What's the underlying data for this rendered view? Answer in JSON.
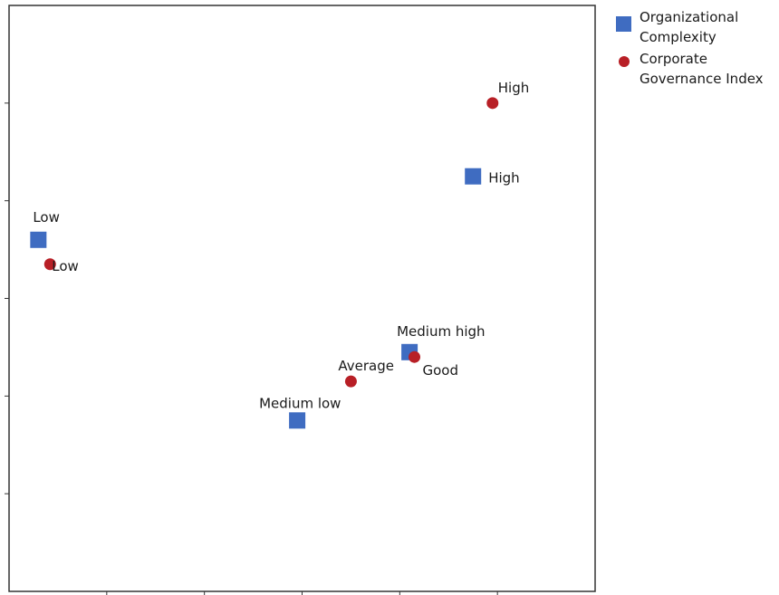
{
  "chart_data": {
    "type": "scatter",
    "title": "",
    "xlabel": "",
    "ylabel": "",
    "xlim": [
      0,
      6
    ],
    "ylim": [
      0,
      6
    ],
    "grid": false,
    "legend_position": "right",
    "series": [
      {
        "name": "Organizational Complexity",
        "marker": "square",
        "color": "#3f6cc1",
        "points": [
          {
            "label": "Low",
            "x": 0.3,
            "y": 3.6
          },
          {
            "label": "High",
            "x": 4.75,
            "y": 4.25
          },
          {
            "label": "Medium high",
            "x": 4.1,
            "y": 2.45
          },
          {
            "label": "Medium low",
            "x": 2.95,
            "y": 1.75
          }
        ]
      },
      {
        "name": "Corporate Governance Index",
        "marker": "circle",
        "color": "#b81f26",
        "points": [
          {
            "label": "Low",
            "x": 0.42,
            "y": 3.35
          },
          {
            "label": "High",
            "x": 4.95,
            "y": 5.0
          },
          {
            "label": "Good",
            "x": 4.15,
            "y": 2.4
          },
          {
            "label": "Average",
            "x": 3.5,
            "y": 2.15
          }
        ]
      }
    ]
  }
}
